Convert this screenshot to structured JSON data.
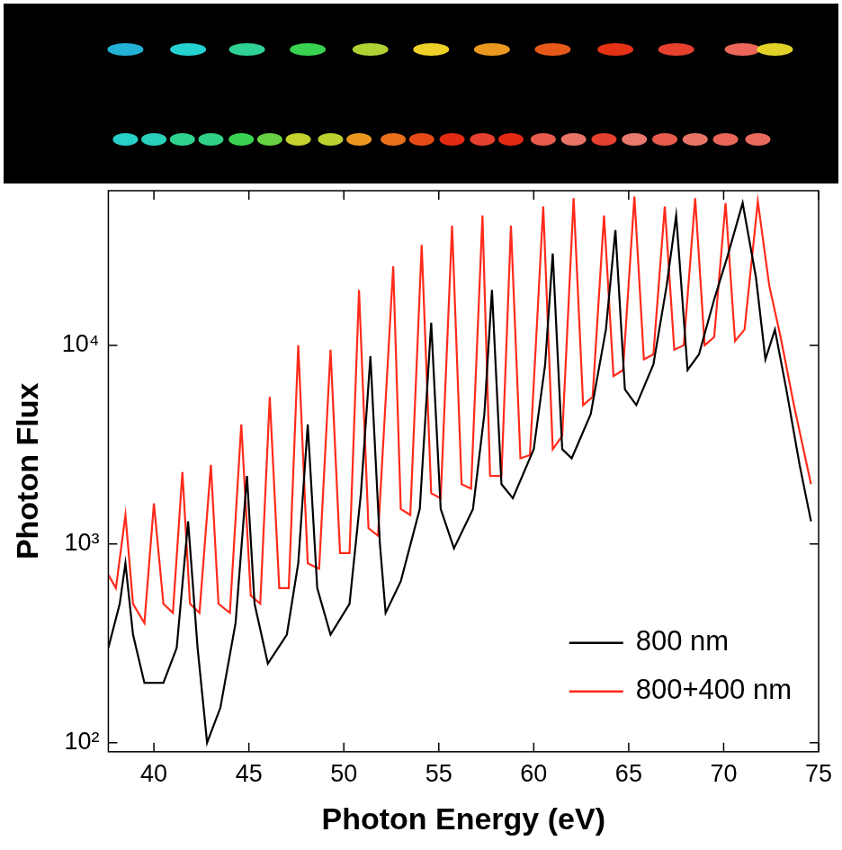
{
  "chart_data": {
    "type": "line",
    "x_label": "Photon Energy (eV)",
    "y_label": "Photon Flux",
    "log": "y",
    "grid": false,
    "legend": "lower right",
    "xlim": [
      37.6,
      75
    ],
    "xticks": [
      40,
      45,
      50,
      55,
      60,
      65,
      70,
      75
    ],
    "ylim": [
      90,
      60000
    ],
    "yticks": [
      {
        "value": 100,
        "label": "10²"
      },
      {
        "value": 1000,
        "label": "10³"
      },
      {
        "value": 10000,
        "label": "10⁴"
      }
    ],
    "series": [
      {
        "name": "800 nm",
        "color": "#000000",
        "x": [
          37.6,
          38.2,
          38.5,
          38.9,
          39.5,
          40.5,
          41.2,
          41.8,
          42.3,
          42.8,
          43.5,
          44.3,
          44.9,
          45.3,
          46.0,
          47.0,
          47.6,
          48.1,
          48.6,
          49.3,
          50.3,
          50.9,
          51.4,
          51.9,
          52.2,
          53.0,
          54.0,
          54.6,
          55.1,
          55.8,
          56.8,
          57.4,
          57.8,
          58.3,
          58.9,
          60.0,
          60.6,
          61.0,
          61.5,
          62.0,
          63.0,
          63.8,
          64.3,
          64.8,
          65.4,
          66.3,
          67.0,
          67.5,
          68.1,
          68.7,
          69.5,
          70.2,
          71.0,
          71.7,
          72.2,
          72.7,
          73.3,
          74.0,
          74.6
        ],
        "values": [
          300,
          500,
          800,
          350,
          200,
          200,
          300,
          1300,
          300,
          100,
          150,
          400,
          2200,
          500,
          250,
          350,
          800,
          4000,
          600,
          350,
          500,
          1800,
          8800,
          1000,
          450,
          650,
          1500,
          13000,
          1500,
          950,
          1500,
          4500,
          19000,
          2000,
          1700,
          3000,
          8000,
          29000,
          3000,
          2700,
          4500,
          12000,
          38000,
          6000,
          5000,
          8000,
          20000,
          45000,
          7500,
          9000,
          17000,
          28000,
          52000,
          22000,
          8500,
          12000,
          6000,
          2500,
          1300
        ]
      },
      {
        "name": "800+400 nm",
        "color": "#ff2a1a",
        "x": [
          37.6,
          38.0,
          38.5,
          38.9,
          39.5,
          40.0,
          40.5,
          41.0,
          41.5,
          41.9,
          42.4,
          43.0,
          43.4,
          44.0,
          44.6,
          45.1,
          45.6,
          46.1,
          46.6,
          47.1,
          47.6,
          48.1,
          48.7,
          49.3,
          49.8,
          50.3,
          50.8,
          51.3,
          51.8,
          52.6,
          53.0,
          53.5,
          54.1,
          54.6,
          55.1,
          55.7,
          56.2,
          56.7,
          57.3,
          57.7,
          58.3,
          58.8,
          59.3,
          59.8,
          60.5,
          61.0,
          61.5,
          62.1,
          62.6,
          63.1,
          63.7,
          64.2,
          64.7,
          65.3,
          65.8,
          66.3,
          66.9,
          67.4,
          67.9,
          68.5,
          69.0,
          69.5,
          70.1,
          70.6,
          71.1,
          71.8,
          72.4,
          73.0,
          73.7,
          74.6
        ],
        "values": [
          700,
          600,
          1400,
          500,
          400,
          1600,
          500,
          450,
          2300,
          500,
          450,
          2500,
          500,
          450,
          4000,
          550,
          500,
          5500,
          600,
          600,
          10000,
          800,
          750,
          9500,
          900,
          900,
          19000,
          1200,
          1100,
          25000,
          1500,
          1400,
          32000,
          1800,
          1700,
          40000,
          2000,
          1900,
          45000,
          2200,
          2200,
          40000,
          2700,
          2800,
          50000,
          3000,
          3500,
          55000,
          5000,
          5500,
          45000,
          7000,
          7500,
          56000,
          8500,
          9000,
          50000,
          9500,
          10000,
          55000,
          10000,
          11000,
          52000,
          10500,
          12000,
          53000,
          20000,
          11000,
          5000,
          2000
        ]
      }
    ]
  }
}
